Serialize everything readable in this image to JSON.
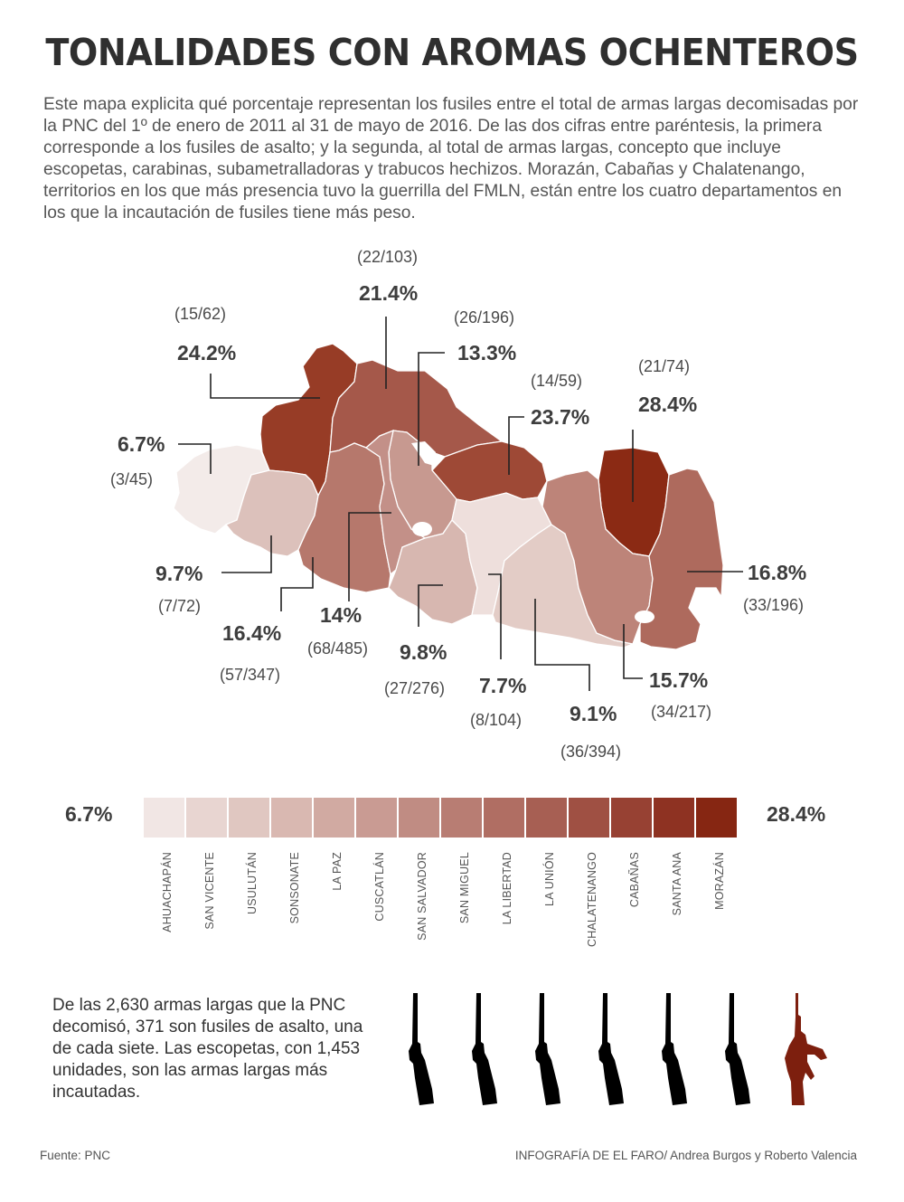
{
  "title": "TONALIDADES CON AROMAS OCHENTEROS",
  "intro": "Este mapa explicita qué porcentaje representan los fusiles entre el total de armas largas decomisadas por la PNC del 1º de enero de 2011 al 31 de mayo de 2016. De las dos cifras entre paréntesis, la primera corresponde a los fusiles de asalto; y la segunda, al total de armas largas, concepto que incluye escopetas, carabinas, subametralladoras y trabucos hechizos. Morazán, Cabañas y Chalatenango, territorios en los que más presencia tuvo la guerrilla del FMLN, están entre los cuatro departamentos en los que la incautación de fusiles tiene más peso.",
  "departments": [
    {
      "id": "ahuachapan",
      "name": "AHUACHAPÁN",
      "pct": "6.7%",
      "counts": "(3/45)",
      "color": "#f3ebe9"
    },
    {
      "id": "santa-ana",
      "name": "SANTA ANA",
      "pct": "24.2%",
      "counts": "(15/62)",
      "color": "#973c26"
    },
    {
      "id": "chalatenango",
      "name": "CHALATENANGO",
      "pct": "21.4%",
      "counts": "(22/103)",
      "color": "#a5584a"
    },
    {
      "id": "cabanas",
      "name": "CABAÑAS",
      "pct": "23.7%",
      "counts": "(14/59)",
      "color": "#9e4936"
    },
    {
      "id": "cuscatlan",
      "name": "CUSCATLÁN",
      "pct": "13.3%",
      "counts": "(26/196)",
      "color": "#c79990"
    },
    {
      "id": "morazan",
      "name": "MORAZÁN",
      "pct": "28.4%",
      "counts": "(21/74)",
      "color": "#8b2a14"
    },
    {
      "id": "sonsonate",
      "name": "SONSONATE",
      "pct": "9.7%",
      "counts": "(7/72)",
      "color": "#dcc1bb"
    },
    {
      "id": "la-libertad",
      "name": "LA LIBERTAD",
      "pct": "16.4%",
      "counts": "(57/347)",
      "color": "#b6786c"
    },
    {
      "id": "san-salvador",
      "name": "SAN SALVADOR",
      "pct": "14%",
      "counts": "(68/485)",
      "color": "#c39088"
    },
    {
      "id": "la-paz",
      "name": "LA PAZ",
      "pct": "9.8%",
      "counts": "(27/276)",
      "color": "#d7b7b0"
    },
    {
      "id": "san-vicente",
      "name": "SAN VICENTE",
      "pct": "7.7%",
      "counts": "(8/104)",
      "color": "#eedfdc"
    },
    {
      "id": "usulutan",
      "name": "USULUTÁN",
      "pct": "9.1%",
      "counts": "(36/394)",
      "color": "#e3ccc6"
    },
    {
      "id": "san-miguel",
      "name": "SAN MIGUEL",
      "pct": "15.7%",
      "counts": "(34/217)",
      "color": "#bd8479"
    },
    {
      "id": "la-union",
      "name": "LA UNIÓN",
      "pct": "16.8%",
      "counts": "(33/196)",
      "color": "#ae6a5d"
    }
  ],
  "legend": {
    "min": "6.7%",
    "max": "28.4%",
    "steps": [
      {
        "label": "AHUACHAPÁN",
        "color": "#f1e6e4"
      },
      {
        "label": "SAN VICENTE",
        "color": "#e8d5d1"
      },
      {
        "label": "USULUTÁN",
        "color": "#e0c7c1"
      },
      {
        "label": "SONSONATE",
        "color": "#d9b8b1"
      },
      {
        "label": "LA PAZ",
        "color": "#d1aaa2"
      },
      {
        "label": "CUSCATLÁN",
        "color": "#c99b93"
      },
      {
        "label": "SAN SALVADOR",
        "color": "#c08c83"
      },
      {
        "label": "SAN MIGUEL",
        "color": "#b87d73"
      },
      {
        "label": "LA LIBERTAD",
        "color": "#b06e63"
      },
      {
        "label": "LA UNIÓN",
        "color": "#a75f53"
      },
      {
        "label": "CHALATENANGO",
        "color": "#9f5043"
      },
      {
        "label": "CABAÑAS",
        "color": "#974133"
      },
      {
        "label": "SANTA ANA",
        "color": "#8e3222"
      },
      {
        "label": "MORAZÁN",
        "color": "#862612"
      }
    ]
  },
  "note": "De las 2,630 armas largas que la PNC decomisó, 371 son fusiles de asalto, una de cada siete. Las escopetas, con 1,453 unidades, son las armas largas más incautadas.",
  "icons": {
    "shotgun_count": 6,
    "shotgun": "shotgun-icon",
    "rifle": "assault-rifle-icon",
    "shotgun_color": "#000000",
    "rifle_color": "#7d1f0e"
  },
  "source": "Fuente: PNC",
  "credit": "INFOGRAFÍA DE EL FARO/ Andrea Burgos y Roberto Valencia"
}
